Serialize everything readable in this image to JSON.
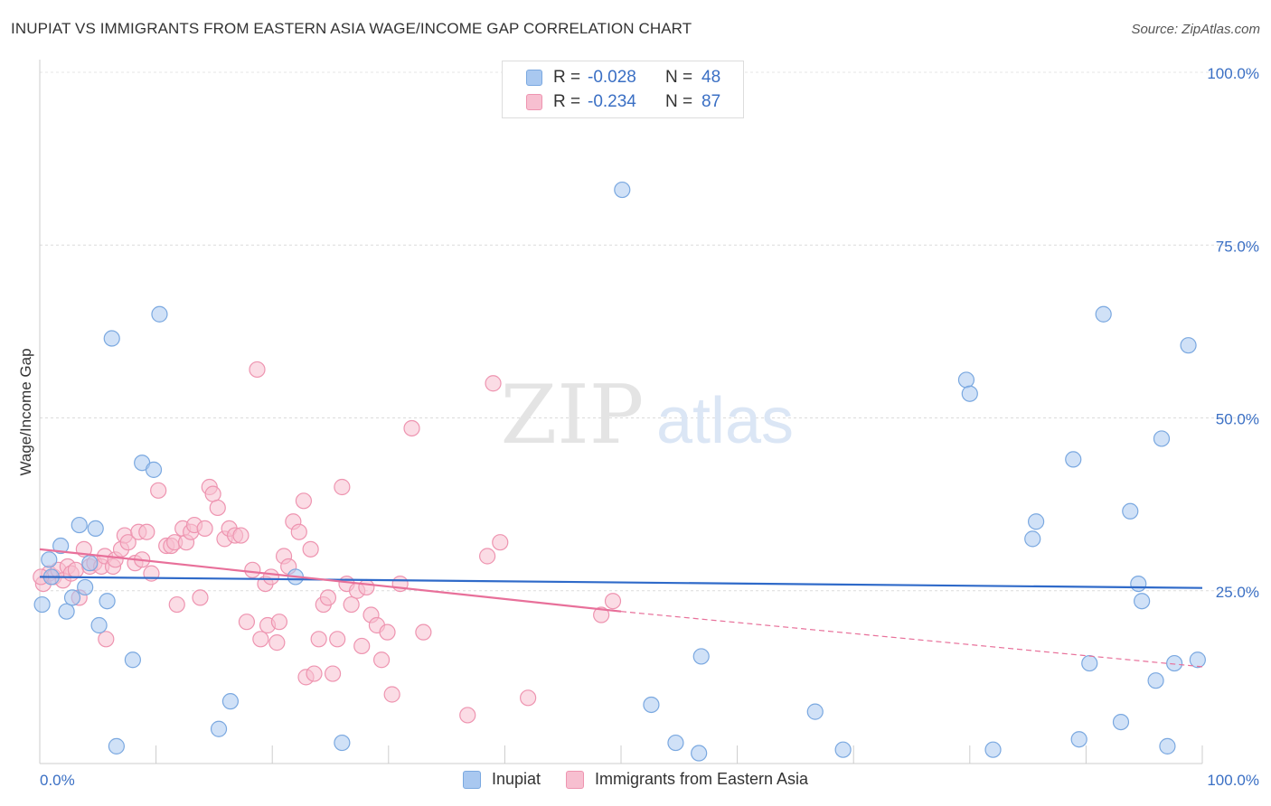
{
  "title": "INUPIAT VS IMMIGRANTS FROM EASTERN ASIA WAGE/INCOME GAP CORRELATION CHART",
  "source": "Source: ZipAtlas.com",
  "watermark": {
    "zip": "ZIP",
    "atlas": "atlas"
  },
  "legend": {
    "rows": [
      {
        "r_label": "R =",
        "r_value": "-0.028",
        "n_label": "N =",
        "n_value": "48",
        "color": "#a9c8f0",
        "stroke": "#7aa8e0"
      },
      {
        "r_label": "R =",
        "r_value": "-0.234",
        "n_label": "N =",
        "n_value": "87",
        "color": "#f7bfd0",
        "stroke": "#ee94b0"
      }
    ]
  },
  "bottom_legend": [
    {
      "label": "Inupiat",
      "color": "#a9c8f0",
      "stroke": "#7aa8e0"
    },
    {
      "label": "Immigrants from Eastern Asia",
      "color": "#f7bfd0",
      "stroke": "#ee94b0"
    }
  ],
  "chart_data": {
    "type": "scatter",
    "title": "INUPIAT VS IMMIGRANTS FROM EASTERN ASIA WAGE/INCOME GAP CORRELATION CHART",
    "xlabel": "",
    "ylabel": "Wage/Income Gap",
    "xlim": [
      0,
      100
    ],
    "ylim": [
      0,
      100
    ],
    "x_tick_labels": [
      "0.0%",
      "100.0%"
    ],
    "y_ticks": [
      25,
      50,
      75,
      100
    ],
    "y_tick_labels": [
      "25.0%",
      "50.0%",
      "75.0%",
      "100.0%"
    ],
    "grid": true,
    "legend_position": "top-center",
    "series": [
      {
        "name": "Inupiat",
        "color": "#a9c8f0",
        "stroke": "#7aa8e0",
        "line_color": "#2f6ac9",
        "trend": {
          "x": [
            0,
            100
          ],
          "y": [
            27,
            25.4
          ]
        },
        "points": [
          [
            0.2,
            23
          ],
          [
            1.0,
            27
          ],
          [
            0.8,
            29.5
          ],
          [
            1.8,
            31.5
          ],
          [
            2.3,
            22
          ],
          [
            2.8,
            24
          ],
          [
            3.4,
            34.5
          ],
          [
            4.3,
            29
          ],
          [
            4.8,
            34
          ],
          [
            3.9,
            25.5
          ],
          [
            5.1,
            20
          ],
          [
            5.8,
            23.5
          ],
          [
            6.2,
            61.5
          ],
          [
            6.6,
            2.5
          ],
          [
            8.0,
            15
          ],
          [
            8.8,
            43.5
          ],
          [
            9.8,
            42.5
          ],
          [
            10.3,
            65
          ],
          [
            15.4,
            5
          ],
          [
            16.4,
            9
          ],
          [
            22.0,
            27
          ],
          [
            26.0,
            3
          ],
          [
            50.1,
            83
          ],
          [
            52.6,
            8.5
          ],
          [
            54.7,
            3
          ],
          [
            56.7,
            1.5
          ],
          [
            56.9,
            15.5
          ],
          [
            66.7,
            7.5
          ],
          [
            69.1,
            2
          ],
          [
            79.7,
            55.5
          ],
          [
            80.0,
            53.5
          ],
          [
            82.0,
            2
          ],
          [
            85.4,
            32.5
          ],
          [
            85.7,
            35
          ],
          [
            88.9,
            44
          ],
          [
            89.4,
            3.5
          ],
          [
            90.3,
            14.5
          ],
          [
            91.5,
            65
          ],
          [
            93.0,
            6
          ],
          [
            93.8,
            36.5
          ],
          [
            94.5,
            26
          ],
          [
            94.8,
            23.5
          ],
          [
            96.0,
            12
          ],
          [
            96.5,
            47
          ],
          [
            97.0,
            2.5
          ],
          [
            97.6,
            14.5
          ],
          [
            98.8,
            60.5
          ],
          [
            99.6,
            15
          ]
        ]
      },
      {
        "name": "Immigrants from Eastern Asia",
        "color": "#f7bfd0",
        "stroke": "#ee94b0",
        "line_color": "#e8709a",
        "trend": {
          "x": [
            0,
            50
          ],
          "y": [
            31,
            22
          ]
        },
        "trend_dashed": {
          "x": [
            50,
            100
          ],
          "y": [
            22,
            14
          ]
        },
        "points": [
          [
            0.3,
            26
          ],
          [
            0.8,
            27.5
          ],
          [
            1.2,
            27
          ],
          [
            1.6,
            28
          ],
          [
            2.0,
            26.5
          ],
          [
            2.4,
            28.5
          ],
          [
            2.7,
            27.5
          ],
          [
            3.1,
            28
          ],
          [
            3.4,
            24
          ],
          [
            3.8,
            31
          ],
          [
            4.3,
            28.5
          ],
          [
            4.7,
            29
          ],
          [
            5.3,
            28.5
          ],
          [
            5.6,
            30
          ],
          [
            5.7,
            18
          ],
          [
            6.3,
            28.5
          ],
          [
            6.5,
            29.5
          ],
          [
            7.0,
            31
          ],
          [
            7.3,
            33
          ],
          [
            7.6,
            32
          ],
          [
            8.2,
            29
          ],
          [
            8.5,
            33.5
          ],
          [
            8.8,
            29.5
          ],
          [
            9.2,
            33.5
          ],
          [
            9.6,
            27.5
          ],
          [
            10.2,
            39.5
          ],
          [
            10.9,
            31.5
          ],
          [
            11.3,
            31.5
          ],
          [
            11.6,
            32
          ],
          [
            11.8,
            23
          ],
          [
            12.3,
            34
          ],
          [
            12.6,
            32
          ],
          [
            13.0,
            33.5
          ],
          [
            13.3,
            34.5
          ],
          [
            13.8,
            24
          ],
          [
            14.2,
            34
          ],
          [
            14.6,
            40
          ],
          [
            14.9,
            39
          ],
          [
            15.3,
            37
          ],
          [
            15.9,
            32.5
          ],
          [
            16.3,
            34
          ],
          [
            16.8,
            33
          ],
          [
            17.3,
            33
          ],
          [
            17.8,
            20.5
          ],
          [
            18.3,
            28
          ],
          [
            18.7,
            57
          ],
          [
            19.0,
            18
          ],
          [
            19.4,
            26
          ],
          [
            19.6,
            20
          ],
          [
            19.9,
            27
          ],
          [
            20.4,
            17.5
          ],
          [
            20.6,
            20.5
          ],
          [
            21.0,
            30
          ],
          [
            21.4,
            28.5
          ],
          [
            21.8,
            35
          ],
          [
            22.3,
            33.5
          ],
          [
            22.7,
            38
          ],
          [
            22.9,
            12.5
          ],
          [
            23.3,
            31
          ],
          [
            23.6,
            13
          ],
          [
            24.0,
            18
          ],
          [
            24.4,
            23
          ],
          [
            24.8,
            24
          ],
          [
            25.2,
            13
          ],
          [
            25.6,
            18
          ],
          [
            26.0,
            40
          ],
          [
            26.4,
            26
          ],
          [
            26.8,
            23
          ],
          [
            27.3,
            25
          ],
          [
            27.7,
            17
          ],
          [
            28.1,
            25.5
          ],
          [
            28.5,
            21.5
          ],
          [
            29.0,
            20
          ],
          [
            29.4,
            15
          ],
          [
            29.9,
            19
          ],
          [
            30.3,
            10
          ],
          [
            31.0,
            26
          ],
          [
            32.0,
            48.5
          ],
          [
            33.0,
            19
          ],
          [
            36.8,
            7
          ],
          [
            38.5,
            30
          ],
          [
            39.0,
            55
          ],
          [
            39.6,
            32
          ],
          [
            42.0,
            9.5
          ],
          [
            48.3,
            21.5
          ],
          [
            49.3,
            23.5
          ],
          [
            0.1,
            27
          ]
        ]
      }
    ]
  }
}
